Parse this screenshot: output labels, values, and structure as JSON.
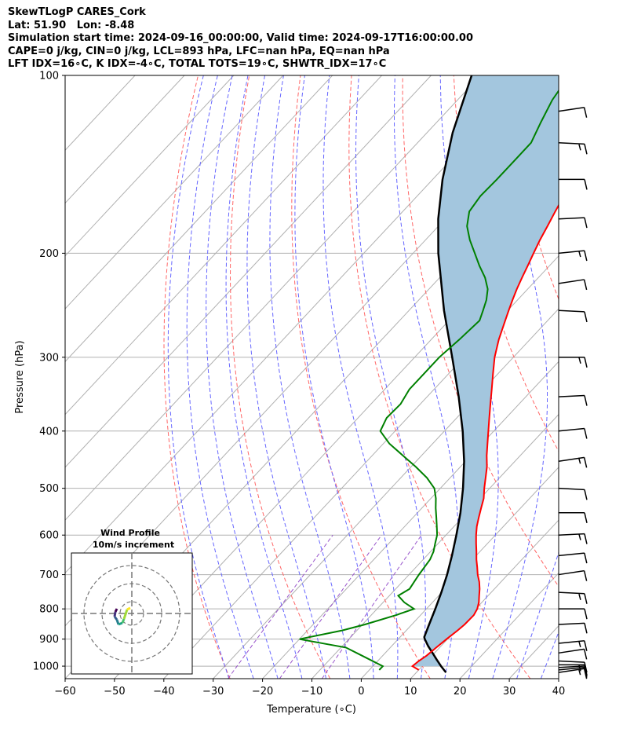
{
  "title": {
    "line1": "SkewTLogP CARES_Cork",
    "line2": "Lat: 51.90   Lon: -8.48",
    "line3": "Simulation start time: 2024-09-16_00:00:00, Valid time: 2024-09-17T16:00:00.00",
    "line4": "CAPE=0 j/kg, CIN=0 j/kg, LCL=893 hPa, LFC=nan hPa, EQ=nan hPa",
    "line5": "LFT IDX=16∘C, K IDX=-4∘C, TOTAL TOTS=19∘C, SHWTR_IDX=17∘C"
  },
  "hodograph": {
    "title": "Wind Profile",
    "subtitle": "10m/s increment"
  },
  "chart_data": {
    "type": "line",
    "xlabel": "Temperature (∘C)",
    "ylabel": "Pressure (hPa)",
    "xlim": [
      -60,
      40
    ],
    "ylim": [
      1050,
      100
    ],
    "y_scale": "log",
    "skew": true,
    "grid": true,
    "xticks": [
      -60,
      -50,
      -40,
      -30,
      -20,
      -10,
      0,
      10,
      20,
      30,
      40
    ],
    "yticks": [
      1000,
      900,
      800,
      700,
      600,
      500,
      400,
      300,
      200,
      100
    ],
    "colors": {
      "temperature": "#ff0000",
      "dewpoint": "#008000",
      "parcel": "#000000",
      "shade": "#a3c6de",
      "dry_adiabat": "#ff6666",
      "moist_adiabat": "#6666ff",
      "mixing_ratio": "#9955cc",
      "isotherm": "#b0b0b0"
    },
    "series": [
      {
        "key": "temperature",
        "p": [
          1015,
          1000,
          980,
          960,
          930,
          900,
          870,
          850,
          820,
          800,
          780,
          760,
          740,
          720,
          700,
          680,
          660,
          640,
          620,
          600,
          580,
          560,
          540,
          520,
          500,
          480,
          460,
          440,
          420,
          400,
          380,
          360,
          340,
          320,
          300,
          280,
          260,
          250,
          240,
          230,
          220,
          210,
          200,
          190,
          180,
          170,
          160,
          150,
          140,
          130,
          120,
          110,
          100
        ],
        "t": [
          10.0,
          8.0,
          8.3,
          8.9,
          9.3,
          9.8,
          10.4,
          10.7,
          10.8,
          10.3,
          9.4,
          8.2,
          7.0,
          5.6,
          3.9,
          2.4,
          0.8,
          -0.7,
          -2.3,
          -3.9,
          -5.4,
          -6.7,
          -8.0,
          -9.3,
          -11.1,
          -12.8,
          -14.6,
          -16.8,
          -18.9,
          -21.1,
          -23.4,
          -25.8,
          -28.3,
          -31.0,
          -33.8,
          -36.3,
          -38.6,
          -39.8,
          -41.0,
          -42.2,
          -43.3,
          -44.4,
          -45.6,
          -46.8,
          -47.9,
          -49.1,
          -50.3,
          -51.0,
          -51.1,
          -50.7,
          -50.3,
          -49.4,
          -48.8
        ]
      },
      {
        "key": "dewpoint",
        "p": [
          1015,
          1000,
          960,
          930,
          900,
          870,
          850,
          820,
          800,
          780,
          760,
          740,
          720,
          700,
          680,
          660,
          640,
          620,
          600,
          580,
          560,
          540,
          520,
          500,
          480,
          460,
          440,
          420,
          400,
          380,
          360,
          340,
          320,
          300,
          280,
          260,
          250,
          240,
          230,
          220,
          210,
          200,
          190,
          180,
          170,
          160,
          150,
          140,
          130,
          120,
          110,
          100
        ],
        "t": [
          2.0,
          2.0,
          -4.2,
          -9.0,
          -20.0,
          -13.0,
          -9.5,
          -5.0,
          -2.5,
          -5.7,
          -8.2,
          -7.2,
          -7.6,
          -8.0,
          -8.3,
          -8.6,
          -9.4,
          -10.6,
          -11.8,
          -13.5,
          -15.3,
          -17.2,
          -19.0,
          -21.2,
          -24.7,
          -29.0,
          -33.8,
          -38.8,
          -43.0,
          -44.2,
          -44.0,
          -45.0,
          -45.0,
          -45.0,
          -44.3,
          -43.8,
          -45.0,
          -46.3,
          -48.1,
          -50.8,
          -54.2,
          -57.5,
          -61.0,
          -64.2,
          -66.5,
          -67.2,
          -67.0,
          -67.0,
          -67.0,
          -68.9,
          -70.8,
          -72.0
        ]
      },
      {
        "key": "parcel",
        "p": [
          1025,
          1000,
          975,
          950,
          925,
          900,
          893,
          850,
          800,
          750,
          700,
          650,
          600,
          550,
          500,
          450,
          400,
          350,
          300,
          250,
          200,
          175,
          150,
          125,
          100
        ],
        "t": [
          16.0,
          13.8,
          11.7,
          9.6,
          7.4,
          5.4,
          4.9,
          3.5,
          1.8,
          -0.1,
          -2.3,
          -4.9,
          -7.9,
          -11.3,
          -15.4,
          -20.3,
          -26.3,
          -33.6,
          -42.4,
          -52.9,
          -64.9,
          -71.4,
          -78.0,
          -84.8,
          -91.8
        ]
      }
    ],
    "wind_barbs_p": [
      1025,
      1015,
      1005,
      995,
      980,
      950,
      915,
      850,
      800,
      750,
      700,
      650,
      600,
      550,
      500,
      450,
      400,
      350,
      300,
      250,
      225,
      200,
      175,
      150,
      130,
      115
    ]
  }
}
